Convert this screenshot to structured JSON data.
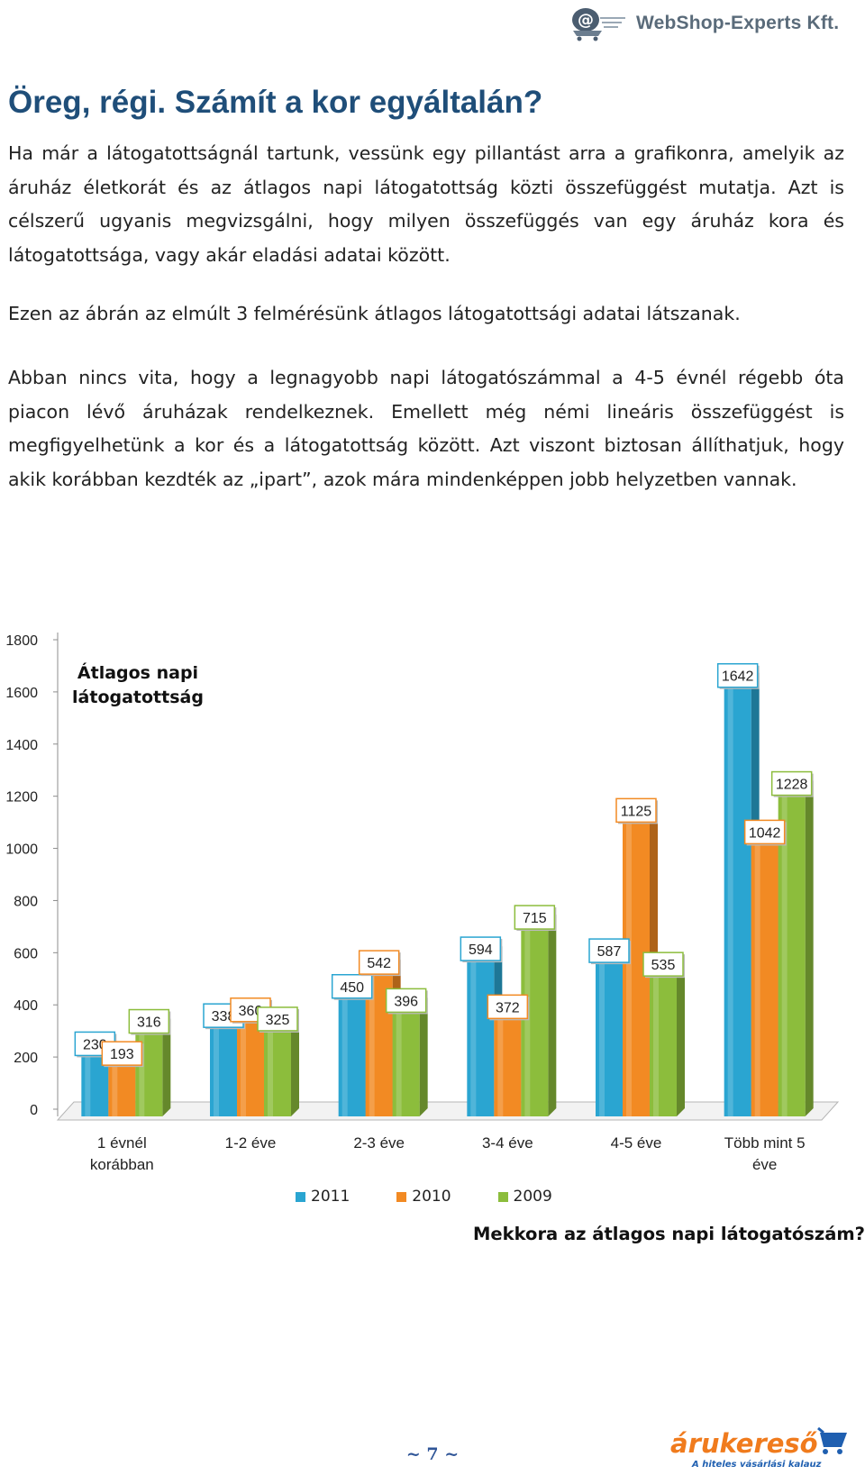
{
  "header": {
    "logo_text": "WebShop-Experts Kft.",
    "logo_icon": "shopping-cart-email-icon"
  },
  "title": "Öreg, régi. Számít a kor egyáltalán?",
  "paragraphs": [
    "Ha már a látogatottságnál tartunk, vessünk egy pillantást arra a grafikonra, amelyik az áruház életkorát és az átlagos napi látogatottság közti összefüggést mutatja. Azt is célszerű ugyanis megvizsgálni, hogy milyen összefüggés van egy áruház kora és látogatottsága, vagy akár eladási adatai között.",
    "Ezen az ábrán az elmúlt 3 felmérésünk átlagos látogatottsági adatai látszanak.",
    "Abban nincs vita, hogy a legnagyobb napi látogatószámmal a 4-5 évnél régebb óta piacon lévő áruházak rendelkeznek. Emellett még némi lineáris összefüggést is megfigyelhetünk a kor és a látogatottság között. Azt viszont biztosan állíthatjuk, hogy akik korábban kezdték az „ipart”, azok mára mindenképpen jobb helyzetben vannak."
  ],
  "chart_data": {
    "type": "bar",
    "title": "Átlagos napi látogatottság",
    "categories": [
      "1 évnél korábban",
      "1-2 éve",
      "2-3 éve",
      "3-4 éve",
      "4-5 éve",
      "Több mint 5 éve"
    ],
    "series": [
      {
        "name": "2011",
        "values": [
          230,
          338,
          450,
          594,
          587,
          1642
        ],
        "color": "#2aa5d1"
      },
      {
        "name": "2010",
        "values": [
          193,
          360,
          542,
          372,
          1125,
          1042
        ],
        "color": "#f28a23"
      },
      {
        "name": "2009",
        "values": [
          316,
          325,
          396,
          715,
          535,
          1228
        ],
        "color": "#8cbd3c"
      }
    ],
    "ylim": [
      0,
      1800
    ],
    "yticks": [
      "0",
      "200",
      "400",
      "600",
      "800",
      "1000",
      "1200",
      "1400",
      "1600",
      "1800"
    ],
    "legend": "bottom",
    "grid": false,
    "caption": "Mekkora az átlagos napi látogatószám?"
  },
  "page_number": "~ 7 ~",
  "footer": {
    "logo_text": "árukereső",
    "logo_tagline": "A hiteles vásárlási kalauz"
  }
}
